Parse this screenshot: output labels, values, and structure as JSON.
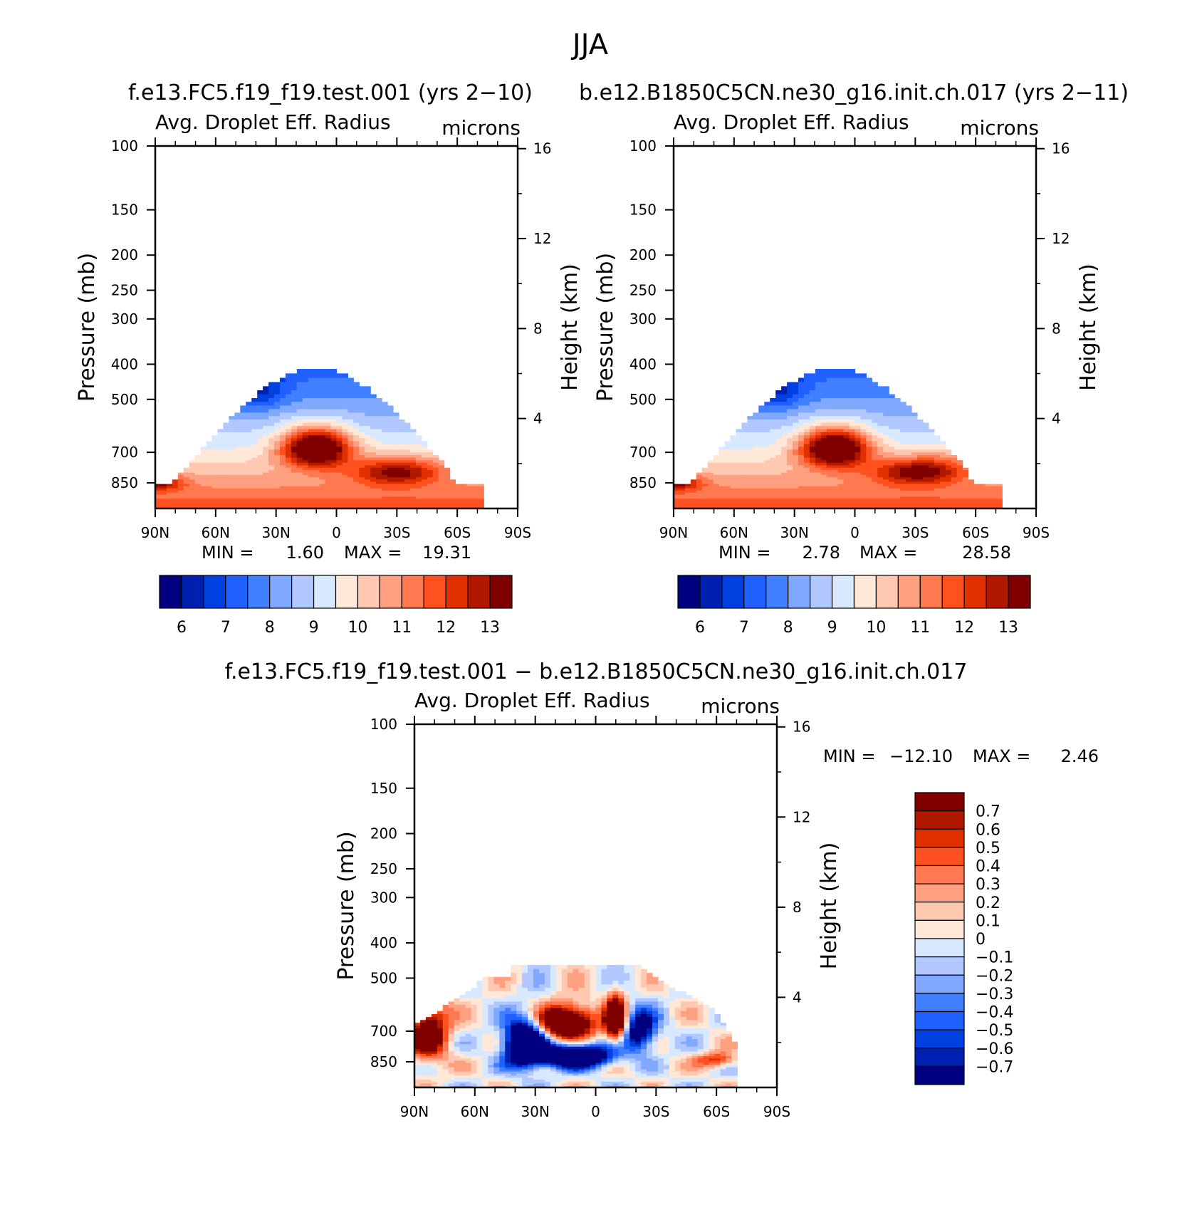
{
  "figure": {
    "title": "JJA",
    "panel_titles": [
      "f.e13.FC5.f19_f19.test.001 (yrs 2−10)",
      "b.e12.B1850C5CN.ne30_g16.init.ch.017 (yrs 2−11)",
      "f.e13.FC5.f19_f19.test.001 − b.e12.B1850C5CN.ne30_g16.init.ch.017"
    ]
  },
  "colors": {
    "abs_scale": [
      "#000080",
      "#0020b0",
      "#0040e0",
      "#2060ff",
      "#4080ff",
      "#80a8ff",
      "#b0c8ff",
      "#d8e8ff",
      "#ffe8d8",
      "#ffc8b0",
      "#ffa080",
      "#ff7850",
      "#ff5020",
      "#e03000",
      "#b01800",
      "#800000"
    ],
    "diff_scale": [
      "#000080",
      "#0020b0",
      "#0040e0",
      "#2060ff",
      "#4080ff",
      "#80a8ff",
      "#b0c8ff",
      "#d8e8ff",
      "#ffe8d8",
      "#ffc8b0",
      "#ffa080",
      "#ff7850",
      "#ff5020",
      "#e03000",
      "#b01800",
      "#800000"
    ]
  },
  "chart_data": [
    {
      "type": "heatmap",
      "title": "Avg. Droplet Eff. Radius",
      "units": "microns",
      "ylabel": "Pressure (mb)",
      "y2label": "Height (km)",
      "x_ticks": [
        "90N",
        "60N",
        "30N",
        "0",
        "30S",
        "60S",
        "90S"
      ],
      "y_ticks": [
        100,
        150,
        200,
        250,
        300,
        400,
        500,
        700,
        850
      ],
      "y_ticks_labels": [
        "100",
        "150",
        "200",
        "250",
        "300",
        "400",
        "500",
        "700",
        "850"
      ],
      "y2_ticks": [
        "16",
        "12",
        "8",
        "4"
      ],
      "stats": {
        "min_label": "MIN =",
        "min": "1.60",
        "max_label": "MAX =",
        "max": "19.31"
      },
      "colorbar_labels": [
        "6",
        "7",
        "8",
        "9",
        "10",
        "11",
        "12",
        "13"
      ],
      "grid": false
    },
    {
      "type": "heatmap",
      "title": "Avg. Droplet Eff. Radius",
      "units": "microns",
      "ylabel": "Pressure (mb)",
      "y2label": "Height (km)",
      "x_ticks": [
        "90N",
        "60N",
        "30N",
        "0",
        "30S",
        "60S",
        "90S"
      ],
      "y_ticks": [
        100,
        150,
        200,
        250,
        300,
        400,
        500,
        700,
        850
      ],
      "y_ticks_labels": [
        "100",
        "150",
        "200",
        "250",
        "300",
        "400",
        "500",
        "700",
        "850"
      ],
      "y2_ticks": [
        "16",
        "12",
        "8",
        "4"
      ],
      "stats": {
        "min_label": "MIN =",
        "min": "2.78",
        "max_label": "MAX =",
        "max": "28.58"
      },
      "colorbar_labels": [
        "6",
        "7",
        "8",
        "9",
        "10",
        "11",
        "12",
        "13"
      ],
      "grid": false
    },
    {
      "type": "heatmap",
      "title": "Avg. Droplet Eff. Radius",
      "units": "microns",
      "ylabel": "Pressure (mb)",
      "y2label": "Height (km)",
      "x_ticks": [
        "90N",
        "60N",
        "30N",
        "0",
        "30S",
        "60S",
        "90S"
      ],
      "y_ticks": [
        100,
        150,
        200,
        250,
        300,
        400,
        500,
        700,
        850
      ],
      "y_ticks_labels": [
        "100",
        "150",
        "200",
        "250",
        "300",
        "400",
        "500",
        "700",
        "850"
      ],
      "y2_ticks": [
        "16",
        "12",
        "8",
        "4"
      ],
      "stats": {
        "min_label": "MIN =",
        "min": "−12.10",
        "max_label": "MAX =",
        "max": "2.46"
      },
      "colorbar_labels": [
        "0.7",
        "0.6",
        "0.5",
        "0.4",
        "0.3",
        "0.2",
        "0.1",
        "0",
        "−0.1",
        "−0.2",
        "−0.3",
        "−0.4",
        "−0.5",
        "−0.6",
        "−0.7"
      ],
      "grid": false
    }
  ]
}
